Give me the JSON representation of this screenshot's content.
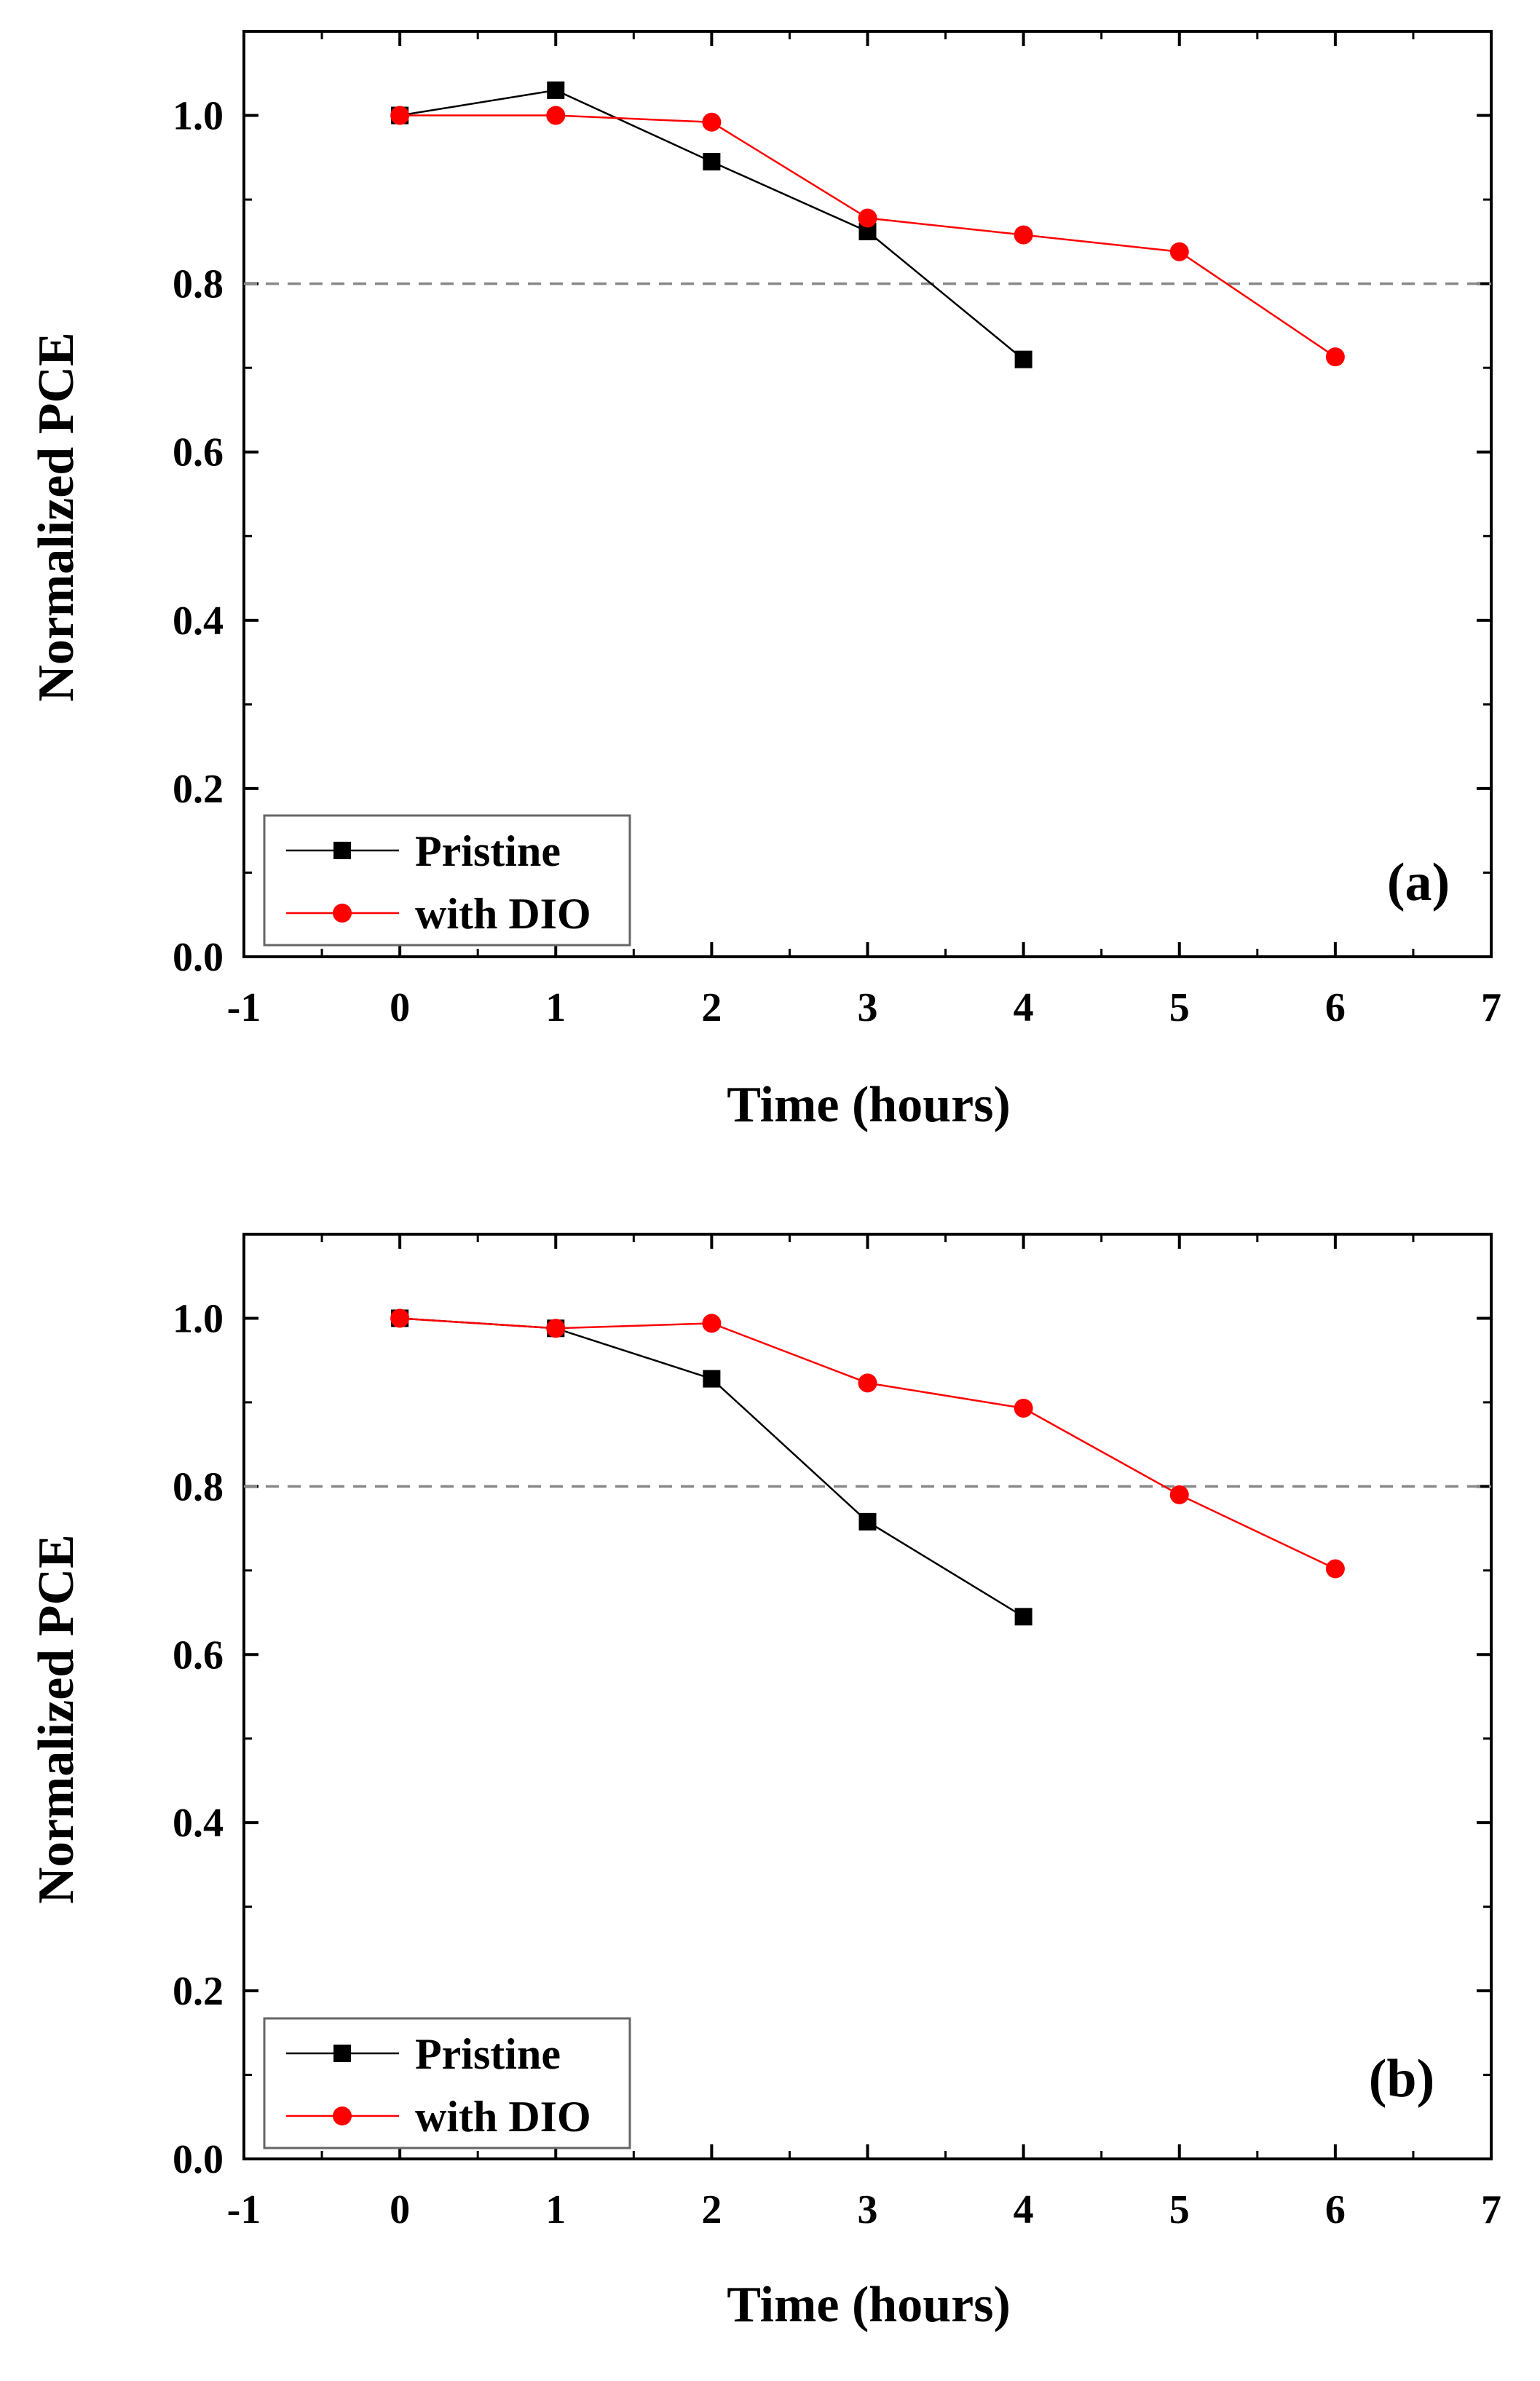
{
  "chart_data": [
    {
      "type": "line",
      "panel_label": "(a)",
      "xlabel": "Time (hours)",
      "ylabel": "Normalized PCE",
      "xlim": [
        -1,
        7
      ],
      "ylim": [
        0,
        1.1
      ],
      "xticks": [
        "-1",
        "0",
        "1",
        "2",
        "3",
        "4",
        "5",
        "6",
        "7"
      ],
      "yticks": [
        "0.0",
        "0.2",
        "0.4",
        "0.6",
        "0.8",
        "1.0"
      ],
      "reference_line": {
        "y": 0.8,
        "style": "dashed",
        "color": "#888888"
      },
      "legend": {
        "placement": "bottom-left"
      },
      "series": [
        {
          "name": "Pristine",
          "marker": "square",
          "color": "#000000",
          "x": [
            0,
            1,
            2,
            3,
            4
          ],
          "y": [
            1.0,
            1.03,
            0.945,
            0.862,
            0.71
          ]
        },
        {
          "name": "with DIO",
          "marker": "circle",
          "color": "#ff0000",
          "x": [
            0,
            1,
            2,
            3,
            4,
            5,
            6
          ],
          "y": [
            1.0,
            1.0,
            0.992,
            0.878,
            0.858,
            0.838,
            0.713
          ]
        }
      ]
    },
    {
      "type": "line",
      "panel_label": "(b)",
      "xlabel": "Time (hours)",
      "ylabel": "Normalized PCE",
      "xlim": [
        -1,
        7
      ],
      "ylim": [
        0,
        1.1
      ],
      "xticks": [
        "-1",
        "0",
        "1",
        "2",
        "3",
        "4",
        "5",
        "6",
        "7"
      ],
      "yticks": [
        "0.0",
        "0.2",
        "0.4",
        "0.6",
        "0.8",
        "1.0"
      ],
      "reference_line": {
        "y": 0.8,
        "style": "dashed",
        "color": "#888888"
      },
      "legend": {
        "placement": "bottom-left"
      },
      "series": [
        {
          "name": "Pristine",
          "marker": "square",
          "color": "#000000",
          "x": [
            0,
            1,
            2,
            3,
            4
          ],
          "y": [
            1.0,
            0.988,
            0.928,
            0.758,
            0.645
          ]
        },
        {
          "name": "with DIO",
          "marker": "circle",
          "color": "#ff0000",
          "x": [
            0,
            1,
            2,
            3,
            4,
            5,
            6
          ],
          "y": [
            1.0,
            0.988,
            0.994,
            0.923,
            0.893,
            0.79,
            0.702
          ]
        }
      ]
    }
  ]
}
